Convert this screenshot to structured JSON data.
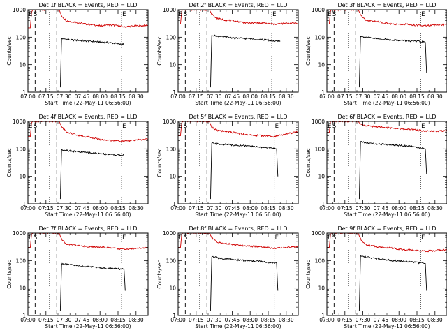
{
  "chart_data": [
    {
      "type": "line",
      "title": "Det 1f BLACK = Events, RED = LLD",
      "xlabel": "Start Time (22-May-11 06:56:00)",
      "ylabel": "Counts/sec",
      "yscale": "log",
      "ylim": [
        1,
        1000
      ],
      "xlim": [
        "07:00",
        "08:40"
      ],
      "x_ticks": [
        "07:00",
        "07:15",
        "07:30",
        "07:45",
        "08:00",
        "08:15",
        "08:30"
      ],
      "y_ticks": [
        "1",
        "10",
        "100",
        "1000"
      ],
      "markers": [
        {
          "label": "E",
          "time": "07:00"
        },
        {
          "label": "S",
          "time": "07:04"
        },
        {
          "label": "E",
          "time": "08:18"
        }
      ],
      "dashed_lines": [
        "07:06",
        "07:24"
      ],
      "dotted_lines": [
        "07:18",
        "08:18"
      ],
      "series": [
        {
          "color": "#d00000",
          "x": [
            "07:00",
            "07:02",
            "07:03",
            "07:04",
            "07:26",
            "07:28",
            "07:32",
            "07:40",
            "07:48",
            "07:55",
            "08:00",
            "08:05",
            "08:12",
            "08:20",
            "08:30",
            "08:40"
          ],
          "y": [
            220,
            220,
            800,
            1000,
            1000,
            600,
            400,
            350,
            300,
            280,
            260,
            280,
            270,
            240,
            260,
            270
          ]
        },
        {
          "color": "#000000",
          "x": [
            "07:27",
            "07:28",
            "07:35",
            "07:45",
            "07:55",
            "08:05",
            "08:15",
            "08:20"
          ],
          "y": [
            1.5,
            90,
            80,
            75,
            70,
            65,
            58,
            55
          ]
        }
      ]
    },
    {
      "type": "line",
      "title": "Det 2f BLACK = Events, RED = LLD",
      "xlabel": "Start Time (22-May-11 06:56:00)",
      "ylabel": "Counts/sec",
      "yscale": "log",
      "ylim": [
        1,
        1000
      ],
      "xlim": [
        "07:00",
        "08:40"
      ],
      "x_ticks": [
        "07:00",
        "07:15",
        "07:30",
        "07:45",
        "08:00",
        "08:15",
        "08:30"
      ],
      "y_ticks": [
        "1",
        "10",
        "100",
        "1000"
      ],
      "markers": [
        {
          "label": "E",
          "time": "07:00"
        },
        {
          "label": "S",
          "time": "07:04"
        },
        {
          "label": "E",
          "time": "08:18"
        }
      ],
      "dashed_lines": [
        "07:06",
        "07:24"
      ],
      "dotted_lines": [
        "07:18",
        "08:18"
      ],
      "series": [
        {
          "color": "#d00000",
          "x": [
            "07:00",
            "07:02",
            "07:03",
            "07:04",
            "07:26",
            "07:28",
            "07:32",
            "07:40",
            "07:48",
            "07:55",
            "08:00",
            "08:05",
            "08:12",
            "08:20",
            "08:30",
            "08:40"
          ],
          "y": [
            300,
            300,
            900,
            1000,
            1000,
            700,
            480,
            420,
            380,
            340,
            320,
            330,
            320,
            300,
            320,
            330
          ]
        },
        {
          "color": "#000000",
          "x": [
            "07:27",
            "07:28",
            "07:35",
            "07:45",
            "07:55",
            "08:05",
            "08:15",
            "08:20",
            "08:25"
          ],
          "y": [
            1.5,
            120,
            105,
            95,
            90,
            85,
            78,
            72,
            70
          ]
        }
      ]
    },
    {
      "type": "line",
      "title": "Det 3f BLACK = Events, RED = LLD",
      "xlabel": "Start Time (22-May-11 06:56:00)",
      "ylabel": "Counts/sec",
      "yscale": "log",
      "ylim": [
        1,
        1000
      ],
      "xlim": [
        "07:00",
        "08:40"
      ],
      "x_ticks": [
        "07:00",
        "07:15",
        "07:30",
        "07:45",
        "08:00",
        "08:15",
        "08:30"
      ],
      "y_ticks": [
        "1",
        "10",
        "100",
        "1000"
      ],
      "markers": [
        {
          "label": "E",
          "time": "07:00"
        },
        {
          "label": "S",
          "time": "07:04"
        },
        {
          "label": "E",
          "time": "08:18"
        }
      ],
      "dashed_lines": [
        "07:06",
        "07:24"
      ],
      "dotted_lines": [
        "07:18",
        "08:18"
      ],
      "series": [
        {
          "color": "#d00000",
          "x": [
            "07:00",
            "07:02",
            "07:03",
            "07:04",
            "07:26",
            "07:28",
            "07:32",
            "07:40",
            "07:48",
            "07:55",
            "08:00",
            "08:05",
            "08:12",
            "08:20",
            "08:30",
            "08:40"
          ],
          "y": [
            300,
            300,
            900,
            1000,
            1000,
            700,
            420,
            380,
            330,
            300,
            290,
            300,
            280,
            260,
            280,
            290
          ]
        },
        {
          "color": "#000000",
          "x": [
            "07:27",
            "07:28",
            "07:35",
            "07:45",
            "07:55",
            "08:05",
            "08:15",
            "08:22",
            "08:23"
          ],
          "y": [
            1.5,
            110,
            95,
            85,
            80,
            75,
            70,
            65,
            5
          ]
        }
      ]
    },
    {
      "type": "line",
      "title": "Det 4f BLACK = Events, RED = LLD",
      "xlabel": "Start Time (22-May-11 06:56:00)",
      "ylabel": "Counts/sec",
      "yscale": "log",
      "ylim": [
        1,
        1000
      ],
      "xlim": [
        "07:00",
        "08:40"
      ],
      "x_ticks": [
        "07:00",
        "07:15",
        "07:30",
        "07:45",
        "08:00",
        "08:15",
        "08:30"
      ],
      "y_ticks": [
        "1",
        "10",
        "100",
        "1000"
      ],
      "markers": [
        {
          "label": "E",
          "time": "07:00"
        },
        {
          "label": "S",
          "time": "07:04"
        },
        {
          "label": "E",
          "time": "08:18"
        }
      ],
      "dashed_lines": [
        "07:06",
        "07:24"
      ],
      "dotted_lines": [
        "07:18",
        "08:18"
      ],
      "series": [
        {
          "color": "#d00000",
          "x": [
            "07:00",
            "07:02",
            "07:03",
            "07:04",
            "07:26",
            "07:28",
            "07:32",
            "07:40",
            "07:48",
            "07:55",
            "08:00",
            "08:05",
            "08:12",
            "08:20",
            "08:30",
            "08:40"
          ],
          "y": [
            280,
            280,
            900,
            1000,
            1000,
            650,
            420,
            330,
            280,
            250,
            220,
            210,
            200,
            190,
            210,
            230
          ]
        },
        {
          "color": "#000000",
          "x": [
            "07:27",
            "07:28",
            "07:35",
            "07:45",
            "07:55",
            "08:05",
            "08:15",
            "08:20"
          ],
          "y": [
            1.5,
            95,
            85,
            75,
            70,
            65,
            60,
            58
          ]
        }
      ]
    },
    {
      "type": "line",
      "title": "Det 5f BLACK = Events, RED = LLD",
      "xlabel": "Start Time (22-May-11 06:56:00)",
      "ylabel": "Counts/sec",
      "yscale": "log",
      "ylim": [
        1,
        1000
      ],
      "xlim": [
        "07:00",
        "08:40"
      ],
      "x_ticks": [
        "07:00",
        "07:15",
        "07:30",
        "07:45",
        "08:00",
        "08:15",
        "08:30"
      ],
      "y_ticks": [
        "1",
        "10",
        "100",
        "1000"
      ],
      "markers": [
        {
          "label": "E",
          "time": "07:00"
        },
        {
          "label": "S",
          "time": "07:04"
        },
        {
          "label": "E",
          "time": "08:20"
        }
      ],
      "dashed_lines": [
        "07:06",
        "07:24"
      ],
      "dotted_lines": [
        "07:18",
        "08:20"
      ],
      "series": [
        {
          "color": "#d00000",
          "x": [
            "07:00",
            "07:02",
            "07:03",
            "07:04",
            "07:26",
            "07:28",
            "07:32",
            "07:40",
            "07:48",
            "07:55",
            "08:00",
            "08:05",
            "08:12",
            "08:20",
            "08:30",
            "08:40"
          ],
          "y": [
            300,
            300,
            900,
            1000,
            1000,
            620,
            470,
            430,
            380,
            340,
            320,
            310,
            300,
            280,
            350,
            420
          ]
        },
        {
          "color": "#000000",
          "x": [
            "07:27",
            "07:28",
            "07:35",
            "07:45",
            "07:55",
            "08:05",
            "08:15",
            "08:22",
            "08:23"
          ],
          "y": [
            1.5,
            160,
            150,
            140,
            130,
            120,
            110,
            100,
            10
          ]
        }
      ]
    },
    {
      "type": "line",
      "title": "Det 6f BLACK = Events, RED = LLD",
      "xlabel": "Start Time (22-May-11 06:56:00)",
      "ylabel": "Counts/sec",
      "yscale": "log",
      "ylim": [
        1,
        1000
      ],
      "xlim": [
        "07:00",
        "08:40"
      ],
      "x_ticks": [
        "07:00",
        "07:15",
        "07:30",
        "07:45",
        "08:00",
        "08:15",
        "08:30"
      ],
      "y_ticks": [
        "1",
        "10",
        "100",
        "1000"
      ],
      "markers": [
        {
          "label": "E",
          "time": "07:00"
        },
        {
          "label": "S",
          "time": "07:04"
        },
        {
          "label": "E",
          "time": "08:18"
        }
      ],
      "dashed_lines": [
        "07:06",
        "07:24"
      ],
      "dotted_lines": [
        "07:18",
        "08:18"
      ],
      "series": [
        {
          "color": "#d00000",
          "x": [
            "07:00",
            "07:02",
            "07:03",
            "07:04",
            "07:26",
            "07:28",
            "07:32",
            "07:40",
            "07:48",
            "07:55",
            "08:00",
            "08:05",
            "08:12",
            "08:20",
            "08:30",
            "08:40"
          ],
          "y": [
            400,
            400,
            1000,
            1000,
            1000,
            800,
            700,
            650,
            600,
            560,
            540,
            520,
            500,
            460,
            440,
            450
          ]
        },
        {
          "color": "#000000",
          "x": [
            "07:27",
            "07:28",
            "07:35",
            "07:45",
            "07:55",
            "08:05",
            "08:15",
            "08:22",
            "08:23"
          ],
          "y": [
            1.5,
            180,
            160,
            150,
            140,
            130,
            115,
            100,
            12
          ]
        }
      ]
    },
    {
      "type": "line",
      "title": "Det 7f BLACK = Events, RED = LLD",
      "xlabel": "Start Time (22-May-11 06:56:00)",
      "ylabel": "Counts/sec",
      "yscale": "log",
      "ylim": [
        1,
        1000
      ],
      "xlim": [
        "07:00",
        "08:40"
      ],
      "x_ticks": [
        "07:00",
        "07:15",
        "07:30",
        "07:45",
        "08:00",
        "08:15",
        "08:30"
      ],
      "y_ticks": [
        "1",
        "10",
        "100",
        "1000"
      ],
      "markers": [
        {
          "label": "E",
          "time": "07:00"
        },
        {
          "label": "S",
          "time": "07:04"
        },
        {
          "label": "E",
          "time": "08:18"
        }
      ],
      "dashed_lines": [
        "07:06",
        "07:24"
      ],
      "dotted_lines": [
        "07:18",
        "08:18"
      ],
      "series": [
        {
          "color": "#d00000",
          "x": [
            "07:00",
            "07:02",
            "07:03",
            "07:04",
            "07:26",
            "07:28",
            "07:32",
            "07:40",
            "07:48",
            "07:55",
            "08:00",
            "08:05",
            "08:12",
            "08:20",
            "08:30",
            "08:40"
          ],
          "y": [
            300,
            300,
            900,
            1000,
            1000,
            600,
            400,
            360,
            330,
            310,
            300,
            300,
            280,
            260,
            280,
            300
          ]
        },
        {
          "color": "#000000",
          "x": [
            "07:27",
            "07:28",
            "07:35",
            "07:45",
            "07:55",
            "08:05",
            "08:15",
            "08:20",
            "08:21"
          ],
          "y": [
            1.5,
            75,
            70,
            62,
            58,
            52,
            50,
            48,
            8
          ]
        }
      ]
    },
    {
      "type": "line",
      "title": "Det 8f BLACK = Events, RED = LLD",
      "xlabel": "Start Time (22-May-11 06:56:00)",
      "ylabel": "Counts/sec",
      "yscale": "log",
      "ylim": [
        1,
        1000
      ],
      "xlim": [
        "07:00",
        "08:40"
      ],
      "x_ticks": [
        "07:00",
        "07:15",
        "07:30",
        "07:45",
        "08:00",
        "08:15",
        "08:30"
      ],
      "y_ticks": [
        "1",
        "10",
        "100",
        "1000"
      ],
      "markers": [
        {
          "label": "E",
          "time": "07:00"
        },
        {
          "label": "S",
          "time": "07:04"
        },
        {
          "label": "E",
          "time": "08:20"
        }
      ],
      "dashed_lines": [
        "07:06",
        "07:24"
      ],
      "dotted_lines": [
        "07:18",
        "08:20"
      ],
      "series": [
        {
          "color": "#d00000",
          "x": [
            "07:00",
            "07:02",
            "07:03",
            "07:04",
            "07:26",
            "07:28",
            "07:32",
            "07:40",
            "07:48",
            "07:55",
            "08:00",
            "08:05",
            "08:12",
            "08:20",
            "08:30",
            "08:40"
          ],
          "y": [
            300,
            300,
            900,
            1000,
            1000,
            700,
            480,
            420,
            380,
            350,
            330,
            320,
            300,
            280,
            300,
            320
          ]
        },
        {
          "color": "#000000",
          "x": [
            "07:27",
            "07:28",
            "07:35",
            "07:45",
            "07:55",
            "08:05",
            "08:15",
            "08:22",
            "08:23"
          ],
          "y": [
            1.5,
            140,
            120,
            110,
            100,
            95,
            85,
            80,
            8
          ]
        }
      ]
    },
    {
      "type": "line",
      "title": "Det 9f BLACK = Events, RED = LLD",
      "xlabel": "Start Time (22-May-11 06:56:00)",
      "ylabel": "Counts/sec",
      "yscale": "log",
      "ylim": [
        1,
        1000
      ],
      "xlim": [
        "07:00",
        "08:40"
      ],
      "x_ticks": [
        "07:00",
        "07:15",
        "07:30",
        "07:45",
        "08:00",
        "08:15",
        "08:30"
      ],
      "y_ticks": [
        "1",
        "10",
        "100",
        "1000"
      ],
      "markers": [
        {
          "label": "E",
          "time": "07:00"
        },
        {
          "label": "S",
          "time": "07:04"
        },
        {
          "label": "E",
          "time": "08:18"
        }
      ],
      "dashed_lines": [
        "07:06",
        "07:24"
      ],
      "dotted_lines": [
        "07:18",
        "08:18"
      ],
      "series": [
        {
          "color": "#d00000",
          "x": [
            "07:00",
            "07:02",
            "07:03",
            "07:04",
            "07:26",
            "07:28",
            "07:32",
            "07:40",
            "07:48",
            "07:55",
            "08:00",
            "08:05",
            "08:12",
            "08:20",
            "08:30",
            "08:40"
          ],
          "y": [
            300,
            300,
            900,
            1000,
            1000,
            620,
            380,
            330,
            300,
            280,
            260,
            250,
            240,
            220,
            230,
            250
          ]
        },
        {
          "color": "#000000",
          "x": [
            "07:27",
            "07:28",
            "07:35",
            "07:45",
            "07:55",
            "08:05",
            "08:15",
            "08:22",
            "08:23"
          ],
          "y": [
            1.5,
            150,
            130,
            115,
            100,
            95,
            85,
            78,
            8
          ]
        }
      ]
    }
  ]
}
